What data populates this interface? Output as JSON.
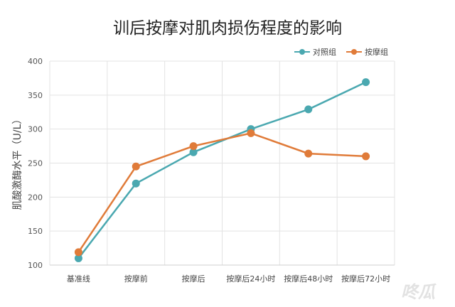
{
  "chart_data": {
    "type": "line",
    "title": "训后按摩对肌肉损伤程度的影响",
    "xlabel": "",
    "ylabel": "肌酸激酶水平（U/L）",
    "categories": [
      "基准线",
      "按摩前",
      "按摩后",
      "按摩后24小时",
      "按摩后48小时",
      "按摩后72小时"
    ],
    "series": [
      {
        "name": "对照组",
        "color": "#4aa8b0",
        "values": [
          110,
          220,
          266,
          300,
          329,
          369
        ]
      },
      {
        "name": "按摩组",
        "color": "#e07b39",
        "values": [
          119,
          245,
          275,
          294,
          264,
          260
        ]
      }
    ],
    "ylim": [
      100,
      400
    ],
    "yticks": [
      100,
      150,
      200,
      250,
      300,
      350,
      400
    ],
    "grid": true,
    "legend_position": "top-right"
  },
  "watermark": "咚瓜"
}
